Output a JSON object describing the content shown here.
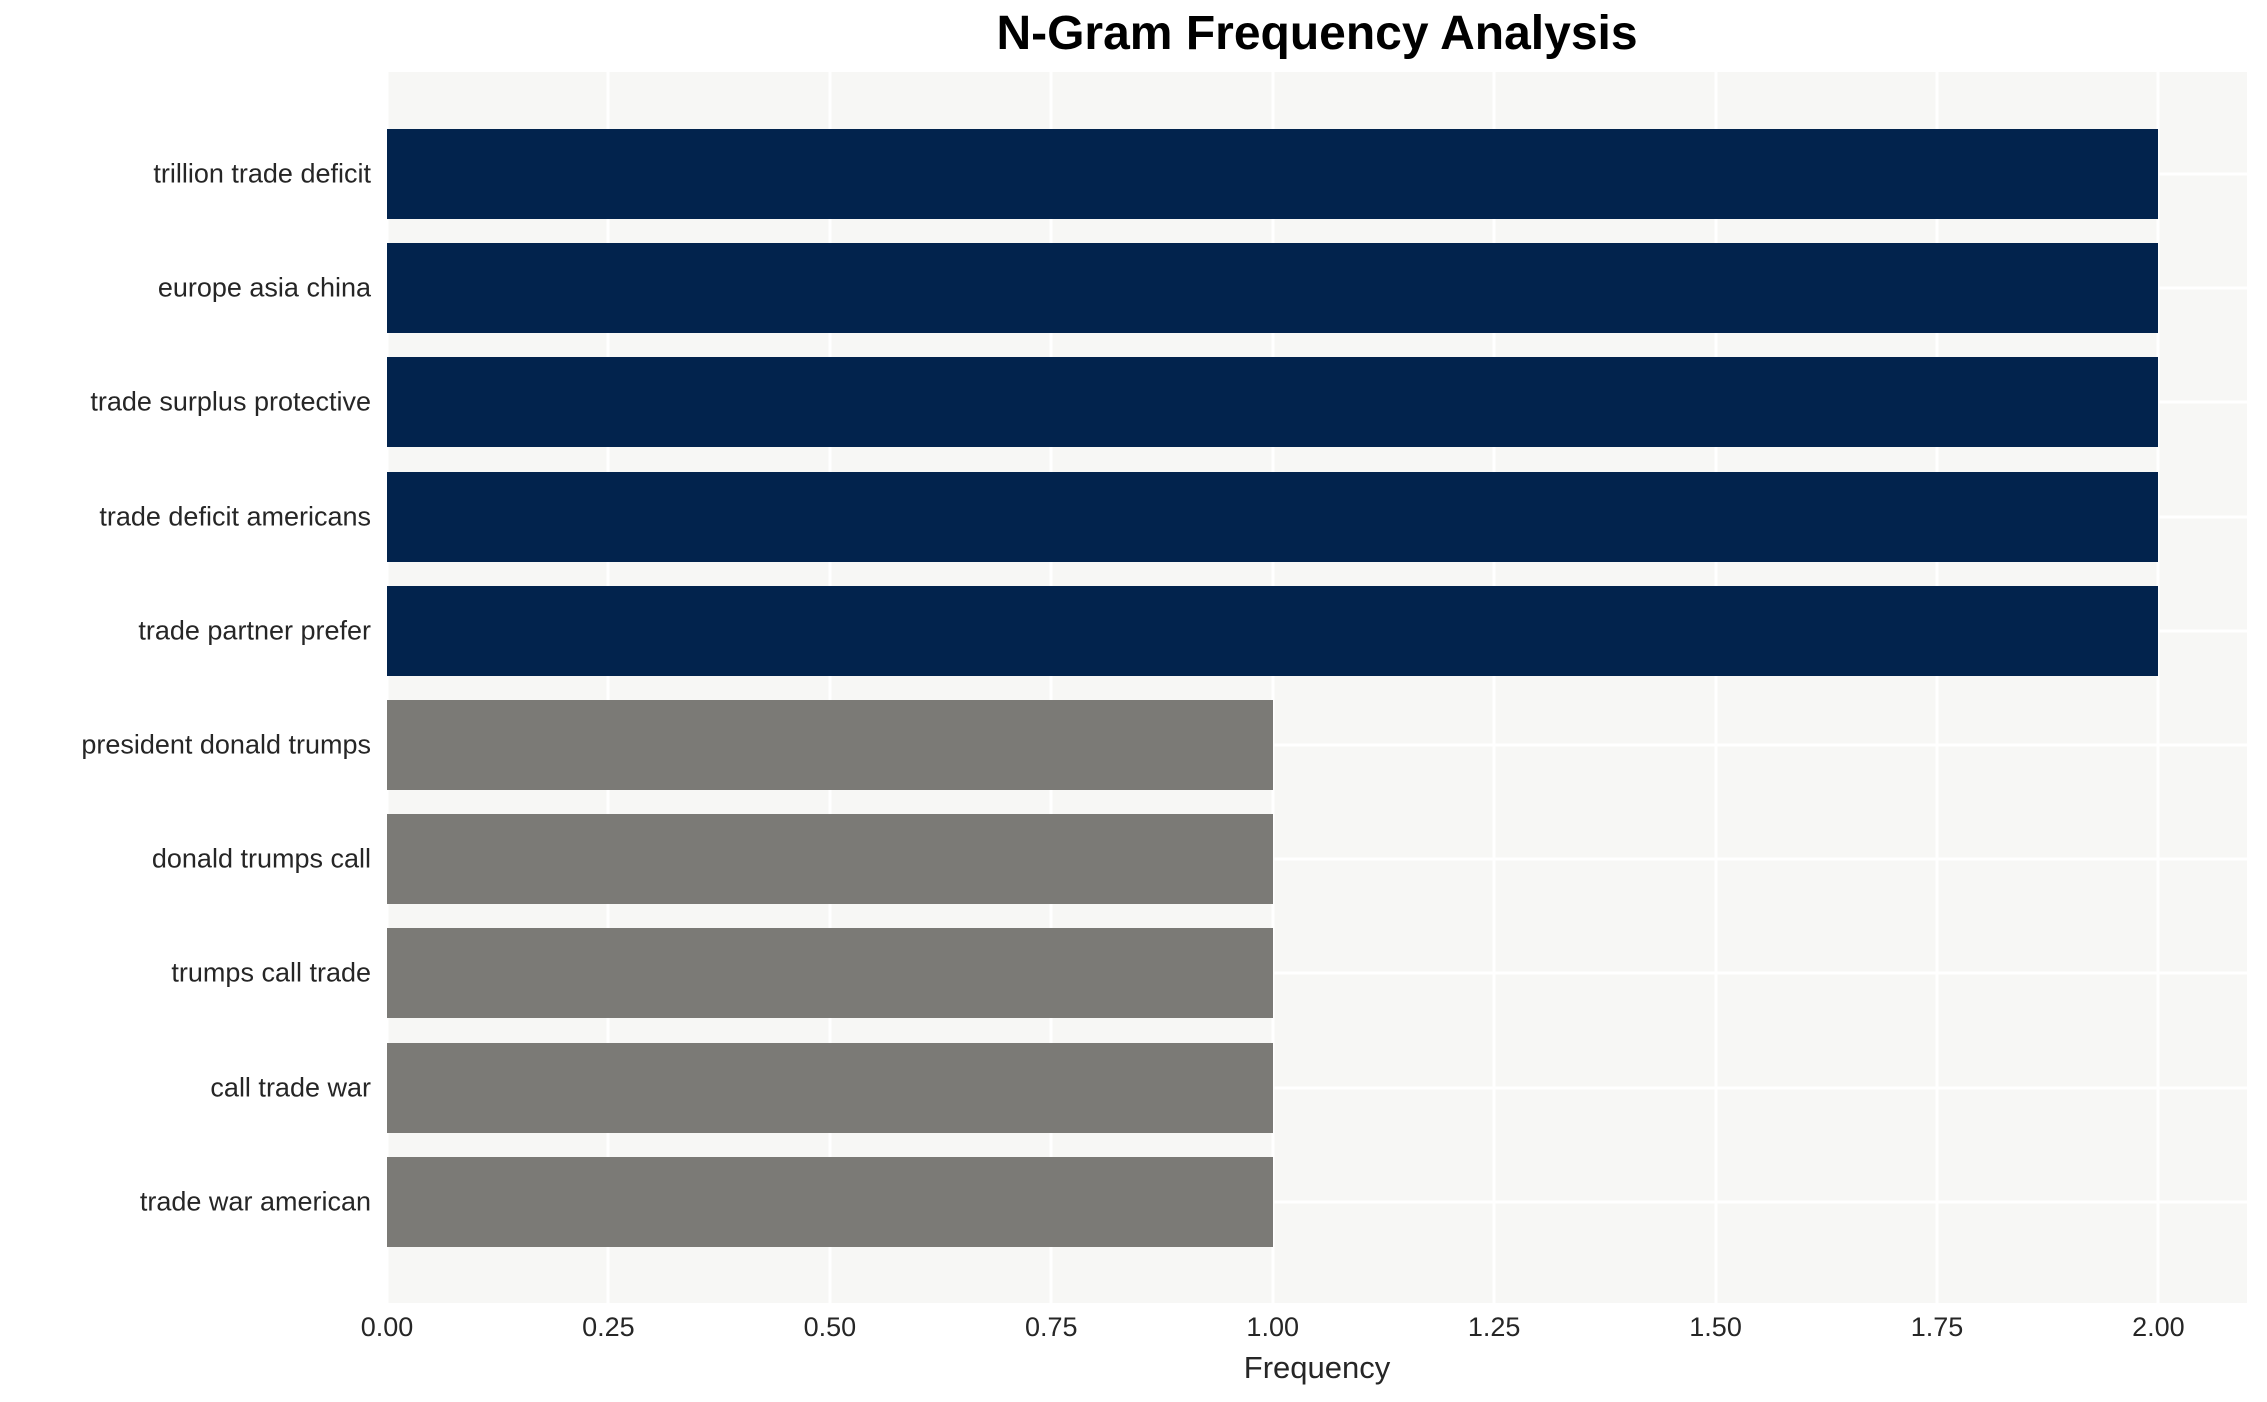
{
  "title": "N-Gram Frequency Analysis",
  "colors": {
    "figure_background": "#ffffff",
    "plot_background": "#f7f7f5",
    "grid": "#ffffff",
    "bar_high": "#02234d",
    "bar_low": "#7b7a76",
    "title_text": "#000000",
    "axis_text": "#262626"
  },
  "chart_data": {
    "type": "bar",
    "orientation": "horizontal",
    "title": "N-Gram Frequency Analysis",
    "xlabel": "Frequency",
    "ylabel": "",
    "categories": [
      "trillion trade deficit",
      "europe asia china",
      "trade surplus protective",
      "trade deficit americans",
      "trade partner prefer",
      "president donald trumps",
      "donald trumps call",
      "trumps call trade",
      "call trade war",
      "trade war american"
    ],
    "values": [
      2,
      2,
      2,
      2,
      2,
      1,
      1,
      1,
      1,
      1
    ],
    "bar_colors": [
      "#02234d",
      "#02234d",
      "#02234d",
      "#02234d",
      "#02234d",
      "#7b7a76",
      "#7b7a76",
      "#7b7a76",
      "#7b7a76",
      "#7b7a76"
    ],
    "xlim": [
      0,
      2.1
    ],
    "xticks": [
      {
        "value": 0,
        "label": "0.00"
      },
      {
        "value": 0.25,
        "label": "0.25"
      },
      {
        "value": 0.5,
        "label": "0.50"
      },
      {
        "value": 0.75,
        "label": "0.75"
      },
      {
        "value": 1.0,
        "label": "1.00"
      },
      {
        "value": 1.25,
        "label": "1.25"
      },
      {
        "value": 1.5,
        "label": "1.50"
      },
      {
        "value": 1.75,
        "label": "1.75"
      },
      {
        "value": 2.0,
        "label": "2.00"
      }
    ],
    "grid": true,
    "legend": false
  }
}
